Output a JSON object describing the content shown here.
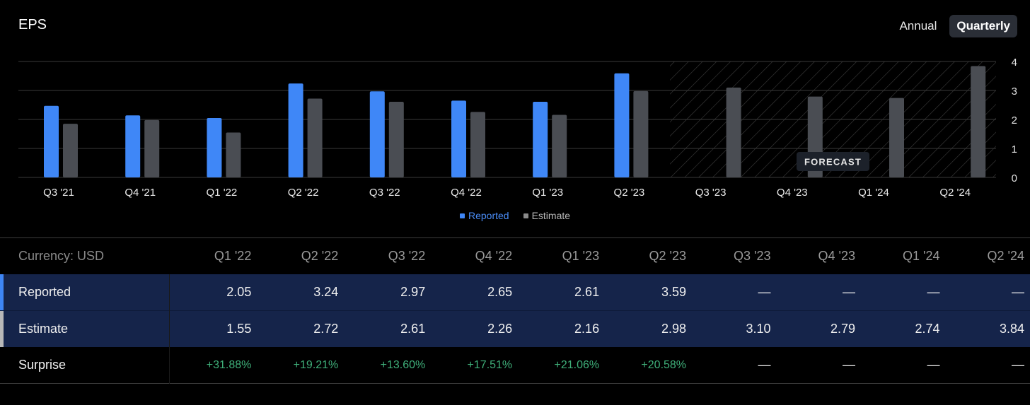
{
  "header": {
    "title": "EPS"
  },
  "toggle": {
    "annual": "Annual",
    "quarterly": "Quarterly"
  },
  "chart_data": {
    "type": "bar",
    "title": "EPS",
    "categories": [
      "Q3 '21",
      "Q4 '21",
      "Q1 '22",
      "Q2 '22",
      "Q3 '22",
      "Q4 '22",
      "Q1 '23",
      "Q2 '23",
      "Q3 '23",
      "Q4 '23",
      "Q1 '24",
      "Q2 '24"
    ],
    "series": [
      {
        "name": "Reported",
        "values": [
          2.47,
          2.14,
          2.05,
          3.24,
          2.97,
          2.65,
          2.61,
          3.59,
          null,
          null,
          null,
          null
        ]
      },
      {
        "name": "Estimate",
        "values": [
          1.85,
          1.98,
          1.55,
          2.72,
          2.61,
          2.26,
          2.16,
          2.98,
          3.1,
          2.79,
          2.74,
          3.84
        ]
      }
    ],
    "colors": {
      "reported": "#3f87f7",
      "estimate": "#4a4d53",
      "grid": "#3a3a3a",
      "forecast_hatch": "#3c3c3c"
    },
    "ylim": [
      0,
      4
    ],
    "yticks": [
      0,
      1,
      2,
      3,
      4
    ],
    "forecast_start_index": 8,
    "forecast_label": "FORECAST",
    "legend": [
      "Reported",
      "Estimate"
    ]
  },
  "table": {
    "currency_label": "Currency: USD",
    "columns": [
      "Q1 '22",
      "Q2 '22",
      "Q3 '22",
      "Q4 '22",
      "Q1 '23",
      "Q2 '23",
      "Q3 '23",
      "Q4 '23",
      "Q1 '24",
      "Q2 '24"
    ],
    "rows": {
      "reported": {
        "label": "Reported",
        "values": [
          "2.05",
          "3.24",
          "2.97",
          "2.65",
          "2.61",
          "3.59",
          "—",
          "—",
          "—",
          "—"
        ]
      },
      "estimate": {
        "label": "Estimate",
        "values": [
          "1.55",
          "2.72",
          "2.61",
          "2.26",
          "2.16",
          "2.98",
          "3.10",
          "2.79",
          "2.74",
          "3.84"
        ]
      },
      "surprise": {
        "label": "Surprise",
        "values": [
          "+31.88%",
          "+19.21%",
          "+13.60%",
          "+17.51%",
          "+21.06%",
          "+20.58%",
          "—",
          "—",
          "—",
          "—"
        ]
      }
    }
  }
}
